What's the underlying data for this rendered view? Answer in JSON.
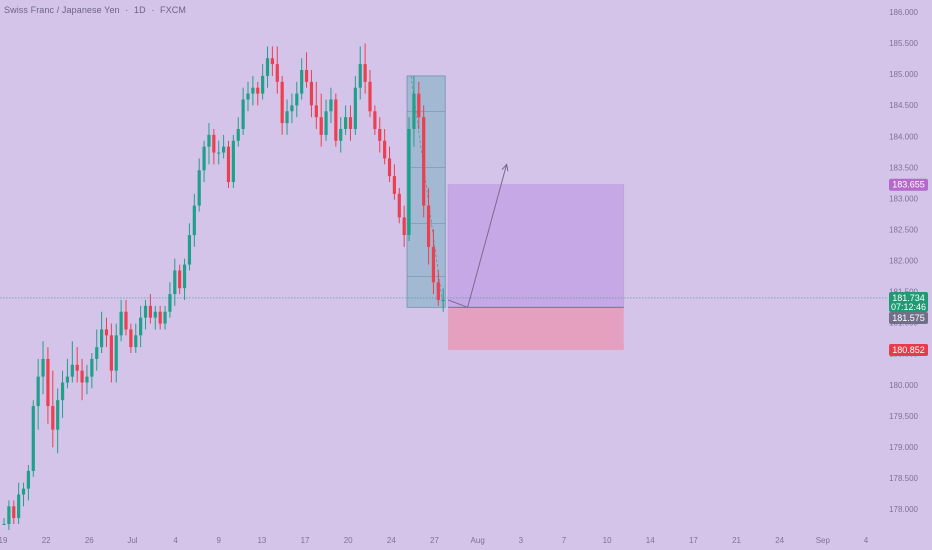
{
  "header": {
    "symbol": "Swiss Franc / Japanese Yen",
    "interval": "1D",
    "exchange": "FXCM"
  },
  "colors": {
    "background": "#d4c4ea",
    "up_candle": "#20a08a",
    "down_candle": "#ec3f4f",
    "target_zone": "#c3a3e6",
    "stop_zone": "#e79ab8",
    "long_marker": "#b569c9",
    "stop_marker": "#e83a48",
    "current_marker": "#1f9a72",
    "prev_close_marker": "#70708a",
    "pattern_box": "#8fb4c8"
  },
  "chart_data": {
    "type": "candlestick",
    "ylim": [
      177.9,
      186.55
    ],
    "y_ticks": [
      "186.000",
      "185.500",
      "185.000",
      "184.500",
      "184.000",
      "183.500",
      "183.000",
      "182.500",
      "182.000",
      "181.500",
      "181.000",
      "180.500",
      "180.000",
      "179.500",
      "179.000",
      "178.500",
      "178.000"
    ],
    "x_ticks": [
      "19",
      "22",
      "26",
      "Jul",
      "4",
      "9",
      "13",
      "17",
      "20",
      "24",
      "27",
      "Aug",
      "3",
      "7",
      "10",
      "14",
      "17",
      "21",
      "24",
      "Sep",
      "4"
    ],
    "candles": [
      [
        177.9,
        178.0,
        177.9,
        177.9
      ],
      [
        177.9,
        178.3,
        177.8,
        178.2
      ],
      [
        178.2,
        178.3,
        177.9,
        178.0
      ],
      [
        178.0,
        178.6,
        177.9,
        178.4
      ],
      [
        178.4,
        178.6,
        178.2,
        178.5
      ],
      [
        178.5,
        178.9,
        178.3,
        178.8
      ],
      [
        178.8,
        180.0,
        178.7,
        179.9
      ],
      [
        179.9,
        180.7,
        179.5,
        180.4
      ],
      [
        180.4,
        181.0,
        180.1,
        180.7
      ],
      [
        180.7,
        180.9,
        179.6,
        179.9
      ],
      [
        179.9,
        180.5,
        179.2,
        179.5
      ],
      [
        179.5,
        180.2,
        179.1,
        180.0
      ],
      [
        180.0,
        180.5,
        179.7,
        180.3
      ],
      [
        180.3,
        180.7,
        180.2,
        180.4
      ],
      [
        180.4,
        181.0,
        180.3,
        180.6
      ],
      [
        180.6,
        180.9,
        180.3,
        180.5
      ],
      [
        180.5,
        180.7,
        180.0,
        180.3
      ],
      [
        180.3,
        180.6,
        180.1,
        180.4
      ],
      [
        180.4,
        180.8,
        180.2,
        180.7
      ],
      [
        180.7,
        181.2,
        180.5,
        180.9
      ],
      [
        180.9,
        181.5,
        180.8,
        181.2
      ],
      [
        181.2,
        181.4,
        180.9,
        181.1
      ],
      [
        181.1,
        181.3,
        180.3,
        180.5
      ],
      [
        180.5,
        181.3,
        180.3,
        181.1
      ],
      [
        181.1,
        181.7,
        181.0,
        181.5
      ],
      [
        181.5,
        181.7,
        181.1,
        181.2
      ],
      [
        181.2,
        181.3,
        180.8,
        180.9
      ],
      [
        180.9,
        181.3,
        180.8,
        181.1
      ],
      [
        181.1,
        181.6,
        180.9,
        181.4
      ],
      [
        181.4,
        181.7,
        181.2,
        181.6
      ],
      [
        181.6,
        181.8,
        181.3,
        181.4
      ],
      [
        181.4,
        181.6,
        181.2,
        181.5
      ],
      [
        181.5,
        181.6,
        181.2,
        181.3
      ],
      [
        181.3,
        181.6,
        181.2,
        181.5
      ],
      [
        181.5,
        182.0,
        181.4,
        181.8
      ],
      [
        181.8,
        182.4,
        181.6,
        182.2
      ],
      [
        182.2,
        182.3,
        181.8,
        181.9
      ],
      [
        181.9,
        182.4,
        181.7,
        182.3
      ],
      [
        182.3,
        183.0,
        182.2,
        182.8
      ],
      [
        182.8,
        183.5,
        182.6,
        183.3
      ],
      [
        183.3,
        184.1,
        183.2,
        183.9
      ],
      [
        183.9,
        184.4,
        183.7,
        184.3
      ],
      [
        184.3,
        184.7,
        184.0,
        184.5
      ],
      [
        184.5,
        184.6,
        184.0,
        184.2
      ],
      [
        184.2,
        184.4,
        184.0,
        184.2
      ],
      [
        184.2,
        184.5,
        184.1,
        184.3
      ],
      [
        184.3,
        184.4,
        183.6,
        183.7
      ],
      [
        183.7,
        184.5,
        183.6,
        184.4
      ],
      [
        184.4,
        184.8,
        184.3,
        184.6
      ],
      [
        184.6,
        185.3,
        184.5,
        185.1
      ],
      [
        185.1,
        185.4,
        184.9,
        185.2
      ],
      [
        185.2,
        185.5,
        185.0,
        185.3
      ],
      [
        185.3,
        185.4,
        185.0,
        185.2
      ],
      [
        185.2,
        185.7,
        185.1,
        185.5
      ],
      [
        185.5,
        186.0,
        185.3,
        185.8
      ],
      [
        185.8,
        186.0,
        185.5,
        185.7
      ],
      [
        185.7,
        186.0,
        185.2,
        185.4
      ],
      [
        185.4,
        185.5,
        184.5,
        184.7
      ],
      [
        184.7,
        185.1,
        184.5,
        184.9
      ],
      [
        184.9,
        185.2,
        184.7,
        185.0
      ],
      [
        185.0,
        185.4,
        184.8,
        185.2
      ],
      [
        185.2,
        185.8,
        185.1,
        185.6
      ],
      [
        185.6,
        185.9,
        185.3,
        185.4
      ],
      [
        185.4,
        185.6,
        184.8,
        185.0
      ],
      [
        185.0,
        185.4,
        184.6,
        184.8
      ],
      [
        184.8,
        185.2,
        184.3,
        184.5
      ],
      [
        184.5,
        185.1,
        184.4,
        184.9
      ],
      [
        184.9,
        185.3,
        184.7,
        185.1
      ],
      [
        185.1,
        185.2,
        184.3,
        184.4
      ],
      [
        184.4,
        184.8,
        184.2,
        184.6
      ],
      [
        184.6,
        185.0,
        184.5,
        184.8
      ],
      [
        184.8,
        185.0,
        184.4,
        184.6
      ],
      [
        184.6,
        185.5,
        184.5,
        185.3
      ],
      [
        185.3,
        186.0,
        185.1,
        185.7
      ],
      [
        185.7,
        186.05,
        185.2,
        185.4
      ],
      [
        185.4,
        185.6,
        184.8,
        184.9
      ],
      [
        184.9,
        185.0,
        184.5,
        184.6
      ],
      [
        184.6,
        184.8,
        184.2,
        184.4
      ],
      [
        184.4,
        184.6,
        184.0,
        184.1
      ],
      [
        184.1,
        184.3,
        183.7,
        183.8
      ],
      [
        183.8,
        184.0,
        183.4,
        183.5
      ],
      [
        183.5,
        183.6,
        183.0,
        183.1
      ],
      [
        183.1,
        183.3,
        182.6,
        182.8
      ],
      [
        182.8,
        184.8,
        182.7,
        184.6
      ],
      [
        184.6,
        185.5,
        184.3,
        185.2
      ],
      [
        185.2,
        185.4,
        184.6,
        184.8
      ],
      [
        184.8,
        185.0,
        183.1,
        183.3
      ],
      [
        183.3,
        183.6,
        182.3,
        182.6
      ],
      [
        182.6,
        182.9,
        181.8,
        182.0
      ],
      [
        182.0,
        182.2,
        181.6,
        181.7
      ],
      [
        181.7,
        181.9,
        181.5,
        181.7
      ]
    ],
    "price_badges": [
      {
        "value": 183.655,
        "label": "183.655",
        "color_key": "long_marker"
      },
      {
        "value": 181.734,
        "label": "181.734",
        "sub": "07:12:46",
        "color_key": "current_marker"
      },
      {
        "value": 181.575,
        "label": "181.575",
        "color_key": "prev_close_marker"
      },
      {
        "value": 180.852,
        "label": "180.852",
        "color_key": "stop_marker"
      }
    ],
    "long_position": {
      "entry": 181.575,
      "target": 183.655,
      "stop": 180.852,
      "start_index": 91,
      "end_index": 127
    },
    "pattern_box": {
      "start_index": 83,
      "end_index": 90,
      "top": 185.5,
      "bottom": 181.575,
      "level_values": [
        184.9,
        183.95,
        183.0,
        182.1
      ]
    },
    "projection_path": [
      [
        91,
        181.7
      ],
      [
        95,
        181.575
      ],
      [
        103,
        184.0
      ]
    ],
    "current_price_line": 181.734
  }
}
